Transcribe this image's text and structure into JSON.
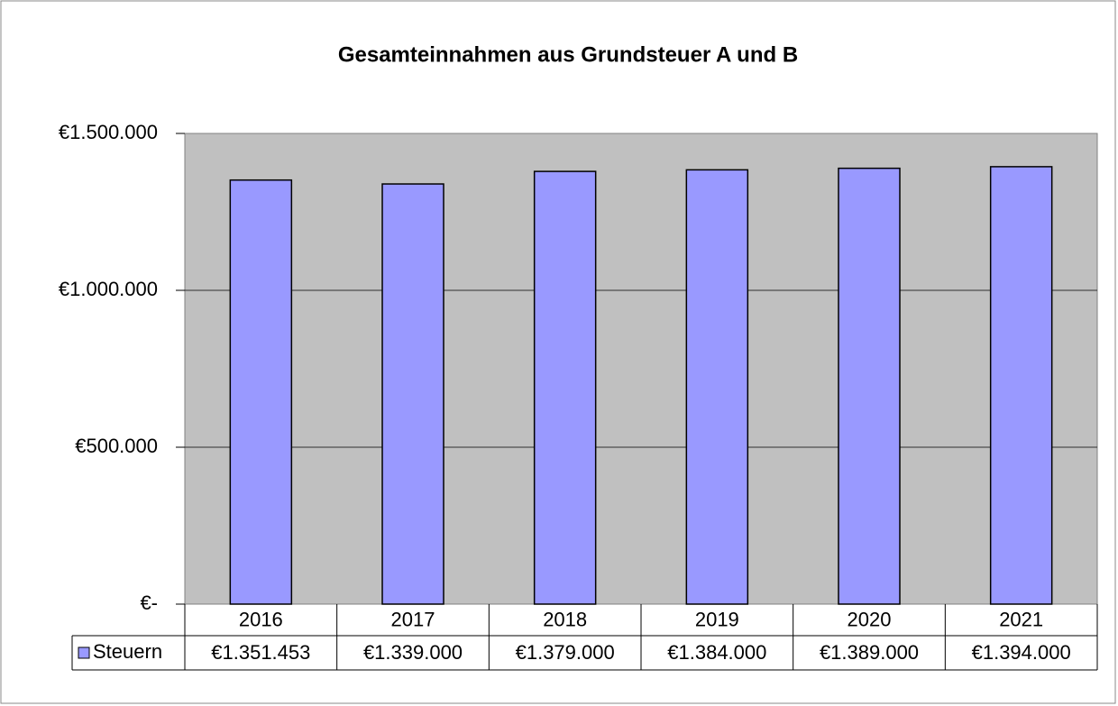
{
  "chart_data": {
    "type": "bar",
    "title": "Gesamteinnahmen aus Grundsteuer A und B",
    "categories": [
      "2016",
      "2017",
      "2018",
      "2019",
      "2020",
      "2021"
    ],
    "series": [
      {
        "name": "Steuern",
        "color": "#9999ff",
        "values": [
          1351453,
          1339000,
          1379000,
          1384000,
          1389000,
          1394000
        ],
        "value_labels": [
          "€1.351.453",
          "€1.339.000",
          "€1.379.000",
          "€1.384.000",
          "€1.389.000",
          "€1.394.000"
        ]
      }
    ],
    "ylim": [
      0,
      1500000
    ],
    "yticks": [
      {
        "value": 0,
        "label": "€-"
      },
      {
        "value": 500000,
        "label": "€500.000"
      },
      {
        "value": 1000000,
        "label": "€1.000.000"
      },
      {
        "value": 1500000,
        "label": "€1.500.000"
      }
    ],
    "grid": true,
    "plot_background": "#c0c0c0"
  }
}
